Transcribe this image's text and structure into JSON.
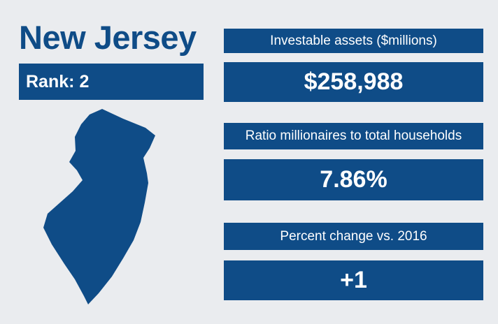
{
  "header": {
    "title": "New Jersey",
    "rank_label": "Rank:",
    "rank": "2"
  },
  "stats": [
    {
      "label": "Investable assets ($millions)",
      "value": "$258,988"
    },
    {
      "label": "Ratio millionaires to total households",
      "value": "7.86%"
    },
    {
      "label": "Percent change vs. 2016",
      "value": "+1"
    }
  ]
}
